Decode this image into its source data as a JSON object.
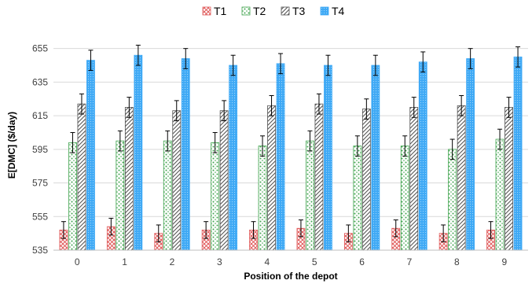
{
  "chart_data": {
    "type": "bar",
    "title": "",
    "xlabel": "Position of the depot",
    "ylabel": "E[DMC] ($/day)",
    "categories": [
      "0",
      "1",
      "2",
      "3",
      "4",
      "5",
      "6",
      "7",
      "8",
      "9"
    ],
    "ylim": [
      535,
      660
    ],
    "yticks": [
      535,
      555,
      575,
      595,
      615,
      635,
      655
    ],
    "grid": true,
    "legend_position": "top",
    "error_bars": true,
    "series": [
      {
        "name": "T1",
        "pattern": "crosshatch",
        "color": "#e05a5a",
        "values": [
          547,
          549,
          545,
          547,
          547,
          548,
          545,
          548,
          545,
          547
        ],
        "errors": [
          5,
          5,
          5,
          5,
          5,
          5,
          5,
          5,
          5,
          5
        ]
      },
      {
        "name": "T2",
        "pattern": "dots",
        "color": "#3fa34d",
        "values": [
          599,
          600,
          600,
          599,
          597,
          600,
          597,
          597,
          595,
          601
        ],
        "errors": [
          6,
          6,
          6,
          6,
          6,
          6,
          6,
          6,
          6,
          6
        ]
      },
      {
        "name": "T3",
        "pattern": "diagonal",
        "color": "#505050",
        "values": [
          622,
          620,
          618,
          618,
          621,
          622,
          619,
          620,
          621,
          620
        ],
        "errors": [
          6,
          6,
          6,
          6,
          6,
          6,
          6,
          6,
          6,
          6
        ]
      },
      {
        "name": "T4",
        "pattern": "fine-dots",
        "color": "#3fa9f5",
        "values": [
          648,
          651,
          649,
          645,
          646,
          645,
          645,
          647,
          649,
          650
        ],
        "errors": [
          6,
          6,
          6,
          6,
          6,
          6,
          6,
          6,
          6,
          6
        ]
      }
    ]
  }
}
